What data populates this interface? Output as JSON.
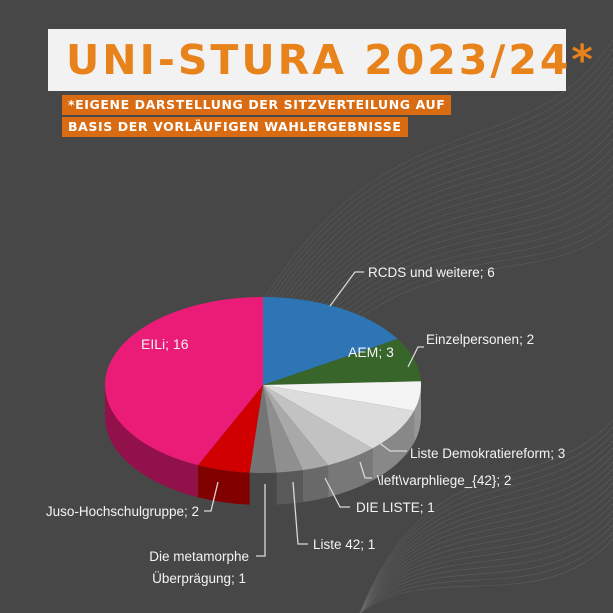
{
  "header": {
    "title": "UNI-STURA 2023/24*",
    "subtitle_line1": "*EIGENE DARSTELLUNG DER SITZVERTEILUNG AUF",
    "subtitle_line2": "BASIS DER VORLÄUFIGEN WAHLERGEBNISSE"
  },
  "colors": {
    "background": "#474747",
    "title_text": "#e8821a",
    "subtitle_bg": "#d96b13"
  },
  "chart_data": {
    "type": "pie",
    "title": "UNI-STURA 2023/24*",
    "three_d": true,
    "slices": [
      {
        "label": "RCDS und weitere; 6",
        "name": "RCDS und weitere",
        "value": 6,
        "color": "#2e75b6"
      },
      {
        "label": "AEM; 3",
        "name": "AEM",
        "value": 3,
        "color": "#37652a"
      },
      {
        "label": "Einzelpersonen; 2",
        "name": "Einzelpersonen",
        "value": 2,
        "color": "#f4f4f4"
      },
      {
        "label": "Liste Demokratiereform; 3",
        "name": "Liste Demokratiereform",
        "value": 3,
        "color": "#dcdcdc"
      },
      {
        "label": "\\left\\varphliege_{42}; 2",
        "name": "\\left\\varphliege_{42}",
        "value": 2,
        "color": "#c2c2c2"
      },
      {
        "label": "DIE LISTE; 1",
        "name": "DIE LISTE",
        "value": 1,
        "color": "#a9a9a9"
      },
      {
        "label": "Liste 42; 1",
        "name": "Liste 42",
        "value": 1,
        "color": "#8f8f8f"
      },
      {
        "label": "Die metamorphe Überprägung; 1",
        "name": "Die metamorphe Überprägung",
        "value": 1,
        "color": "#747474"
      },
      {
        "label": "Juso-Hochschulgruppe; 2",
        "name": "Juso-Hochschulgruppe",
        "value": 2,
        "color": "#d00000"
      },
      {
        "label": "EILi; 16",
        "name": "EILi",
        "value": 16,
        "color": "#eb1c78"
      }
    ],
    "labels": {
      "rcds": "RCDS und weitere; 6",
      "aem": "AEM; 3",
      "einzel": "Einzelpersonen; 2",
      "demo": "Liste Demokratiereform; 3",
      "pflege": "\\left\\varphliege_{42}; 2",
      "dieliste": "DIE LISTE; 1",
      "liste42": "Liste 42; 1",
      "meta_line1": "Die metamorphe",
      "meta_line2": "Überprägung; 1",
      "juso": "Juso-Hochschulgruppe; 2",
      "eili": "EILi; 16"
    }
  }
}
